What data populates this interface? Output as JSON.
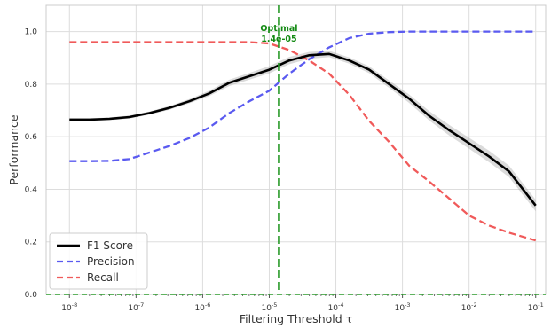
{
  "chart_data": {
    "type": "line",
    "xlabel": "Filtering Threshold τ",
    "ylabel": "Performance",
    "xscale": "log",
    "xlim_exp": [
      -8.35,
      -0.85
    ],
    "ylim": [
      0,
      1.1
    ],
    "grid": true,
    "legend_position": "lower-left",
    "x_ticks": [
      {
        "exp": -8,
        "label": "-8"
      },
      {
        "exp": -7,
        "label": "-7"
      },
      {
        "exp": -6,
        "label": "-6"
      },
      {
        "exp": -5,
        "label": "-5"
      },
      {
        "exp": -4,
        "label": "-4"
      },
      {
        "exp": -3,
        "label": "-3"
      },
      {
        "exp": -2,
        "label": "-2"
      },
      {
        "exp": -1,
        "label": "-1"
      }
    ],
    "y_ticks": [
      {
        "value": 0.0,
        "label": "0.0"
      },
      {
        "value": 0.2,
        "label": "0.2"
      },
      {
        "value": 0.4,
        "label": "0.4"
      },
      {
        "value": 0.6,
        "label": "0.6"
      },
      {
        "value": 0.8,
        "label": "0.8"
      },
      {
        "value": 1.0,
        "label": "1.0"
      }
    ],
    "x_log10": [
      -8.0,
      -7.7,
      -7.4,
      -7.1,
      -6.8,
      -6.5,
      -6.2,
      -5.9,
      -5.6,
      -5.3,
      -5.0,
      -4.7,
      -4.4,
      -4.1,
      -3.8,
      -3.5,
      -3.2,
      -2.9,
      -2.6,
      -2.3,
      -2.0,
      -1.7,
      -1.4,
      -1.0
    ],
    "series": [
      {
        "name": "F1 Score",
        "color": "#000000",
        "style": "solid",
        "values": [
          0.665,
          0.665,
          0.668,
          0.675,
          0.69,
          0.71,
          0.735,
          0.765,
          0.805,
          0.83,
          0.855,
          0.89,
          0.91,
          0.915,
          0.89,
          0.855,
          0.8,
          0.745,
          0.68,
          0.625,
          0.575,
          0.525,
          0.468,
          0.338
        ],
        "band_halfwidth": [
          0.005,
          0.005,
          0.005,
          0.006,
          0.006,
          0.007,
          0.008,
          0.01,
          0.012,
          0.013,
          0.014,
          0.014,
          0.013,
          0.012,
          0.012,
          0.013,
          0.014,
          0.016,
          0.018,
          0.02,
          0.021,
          0.022,
          0.022,
          0.022
        ]
      },
      {
        "name": "Precision",
        "color": "#5a5af0",
        "style": "dashed",
        "values": [
          0.507,
          0.507,
          0.508,
          0.515,
          0.54,
          0.565,
          0.595,
          0.635,
          0.69,
          0.735,
          0.775,
          0.84,
          0.895,
          0.94,
          0.975,
          0.992,
          0.998,
          1.0,
          1.0,
          1.0,
          1.0,
          1.0,
          1.0,
          1.0
        ]
      },
      {
        "name": "Recall",
        "color": "#f05a5a",
        "style": "dashed",
        "values": [
          0.96,
          0.96,
          0.96,
          0.96,
          0.96,
          0.96,
          0.96,
          0.96,
          0.96,
          0.96,
          0.955,
          0.93,
          0.89,
          0.84,
          0.76,
          0.66,
          0.58,
          0.49,
          0.43,
          0.365,
          0.3,
          0.262,
          0.235,
          0.205
        ]
      }
    ],
    "optimal": {
      "label": "Optimal",
      "value_label": "1.4e-05",
      "x_value": 1.4e-05,
      "color": "#2a9a2a"
    },
    "zero_line_color": "#2a9a2a"
  }
}
